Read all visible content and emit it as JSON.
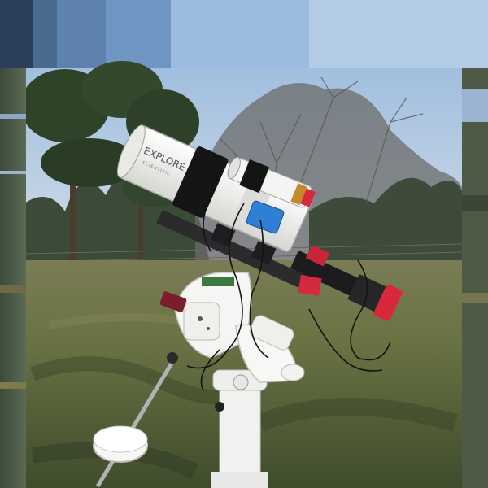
{
  "photo": {
    "telescope_brand_text": "EXPLORE",
    "telescope_sub_text": "SCIENTIFIC",
    "palette": {
      "sky_top": "#8fb4dc",
      "sky_bottom": "#c9d8e8",
      "grass_dark": "#4a5a34",
      "grass_light": "#7f8a55",
      "tube_white": "#f2f2ee",
      "accent_red": "#d8283c",
      "accent_blue": "#2f7fd6"
    }
  }
}
